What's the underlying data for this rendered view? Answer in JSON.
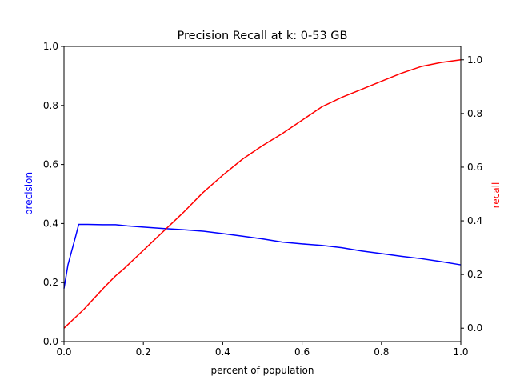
{
  "chart_data": {
    "type": "line",
    "title": "Precision Recall at k: 0-53 GB",
    "xlabel": "percent of population",
    "ylabel_left": "precision",
    "ylabel_right": "recall",
    "xlim": [
      0,
      1
    ],
    "ylim_left": [
      0,
      1
    ],
    "ylim_right": [
      -0.05,
      1.05
    ],
    "xticks": [
      "0.0",
      "0.2",
      "0.4",
      "0.6",
      "0.8",
      "1.0"
    ],
    "yticks_left": [
      "0.0",
      "0.2",
      "0.4",
      "0.6",
      "0.8",
      "1.0"
    ],
    "yticks_right": [
      "0.0",
      "0.2",
      "0.4",
      "0.6",
      "0.8",
      "1.0"
    ],
    "grid": false,
    "series": [
      {
        "name": "precision",
        "axis": "left",
        "color": "#0000ff",
        "x": [
          0.0,
          0.005,
          0.01,
          0.02,
          0.03,
          0.037,
          0.06,
          0.1,
          0.13,
          0.16,
          0.2,
          0.25,
          0.3,
          0.35,
          0.4,
          0.45,
          0.5,
          0.55,
          0.6,
          0.65,
          0.7,
          0.75,
          0.8,
          0.85,
          0.9,
          0.95,
          1.0
        ],
        "y": [
          0.18,
          0.22,
          0.26,
          0.31,
          0.36,
          0.397,
          0.397,
          0.396,
          0.396,
          0.392,
          0.388,
          0.383,
          0.379,
          0.374,
          0.366,
          0.357,
          0.348,
          0.337,
          0.331,
          0.326,
          0.318,
          0.307,
          0.298,
          0.289,
          0.281,
          0.271,
          0.26
        ]
      },
      {
        "name": "recall",
        "axis": "right",
        "color": "#ff0000",
        "x": [
          0.0,
          0.05,
          0.1,
          0.13,
          0.15,
          0.2,
          0.25,
          0.3,
          0.35,
          0.4,
          0.45,
          0.5,
          0.55,
          0.6,
          0.65,
          0.7,
          0.75,
          0.8,
          0.85,
          0.9,
          0.95,
          1.0
        ],
        "y": [
          0.0,
          0.07,
          0.15,
          0.195,
          0.22,
          0.29,
          0.36,
          0.43,
          0.505,
          0.57,
          0.63,
          0.68,
          0.725,
          0.775,
          0.825,
          0.86,
          0.89,
          0.92,
          0.95,
          0.975,
          0.99,
          1.0
        ]
      }
    ]
  }
}
